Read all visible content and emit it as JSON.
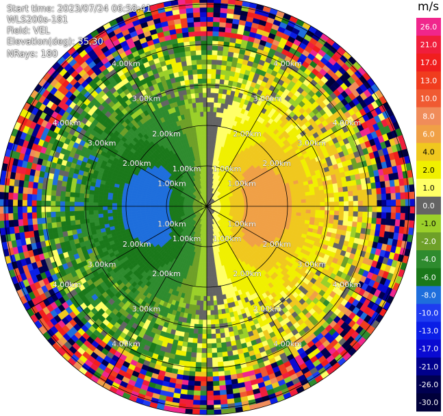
{
  "info": {
    "start_time": "Start time: 2023/07/24 06:58:41",
    "instrument": "WLS200s-181",
    "field": "Field: VEL",
    "elevation": "Elevation(deg): 35.30",
    "nrays": "NRays: 180"
  },
  "chart_data": {
    "type": "heatmap",
    "projection": "polar-ppi",
    "field": "VEL",
    "unit": "m/s",
    "nrays": 180,
    "max_range_km": 5.5,
    "range_ring_labels": [
      "1.00km",
      "2.00km",
      "3.00km",
      "4.00km",
      "5.00km"
    ],
    "colorbar": {
      "unit": "m/s",
      "ticks": [
        "26.0",
        "21.0",
        "17.0",
        "13.0",
        "10.0",
        "8.0",
        "6.0",
        "4.0",
        "2.0",
        "1.0",
        "0.0",
        "-1.0",
        "-2.0",
        "-4.0",
        "-6.0",
        "-8.0",
        "-10.0",
        "-13.0",
        "-17.0",
        "-21.0",
        "-26.0",
        "-30.0"
      ],
      "colors": [
        "#f0268c",
        "#f01e3c",
        "#f01e1e",
        "#f03c1e",
        "#f05a32",
        "#f08c5a",
        "#f0a046",
        "#f0c81e",
        "#f0f000",
        "#ffff66",
        "#646464",
        "#9bd02a",
        "#6ea028",
        "#2e8b2e",
        "#1a781a",
        "#1e6edc",
        "#1e3cf0",
        "#0a1ee6",
        "#0a0ad2",
        "#00008c",
        "#000050",
        "#00003a"
      ],
      "ticks_visible": [
        "26.0",
        "21.0",
        "17.0",
        "13.0",
        "10.0",
        "8.0",
        "6.0",
        "4.0",
        "2.0",
        "1.0",
        "0.0",
        "-1.0",
        "-2.0",
        "-4.0",
        "-6.0",
        "-8.0",
        "-10.0",
        "-13.0",
        "-17.0",
        "-21.0",
        "-26.0",
        "-30.0"
      ]
    }
  }
}
